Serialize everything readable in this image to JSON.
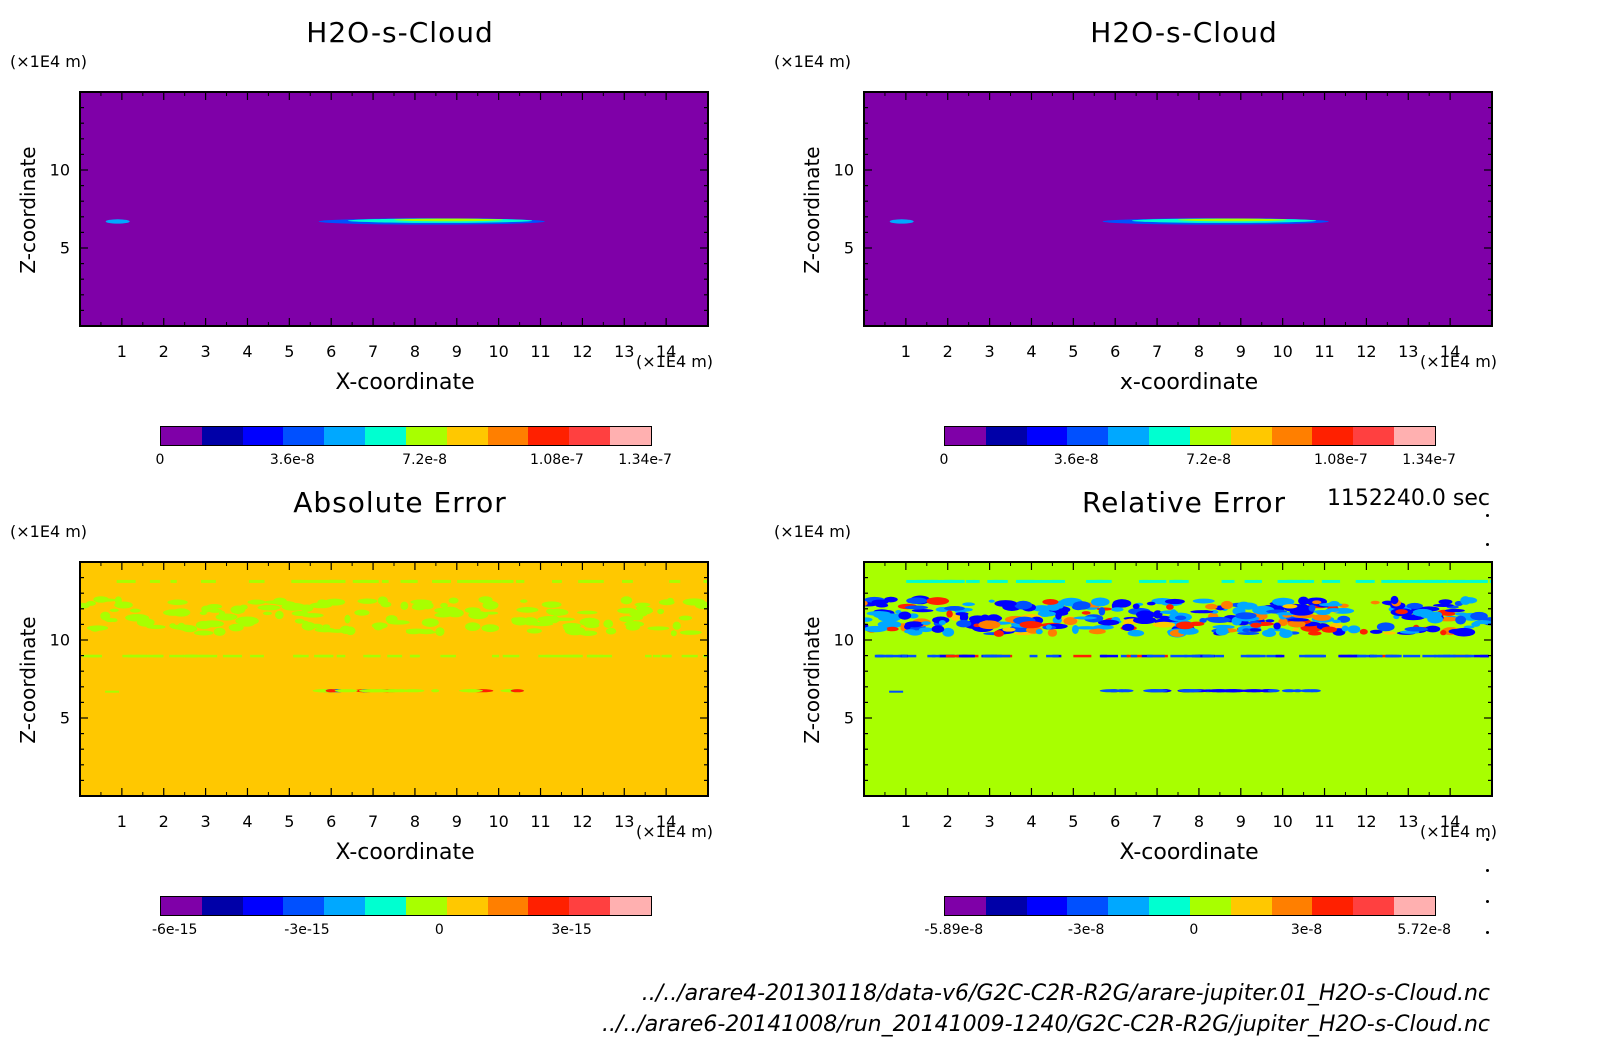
{
  "panels": [
    {
      "title": "H2O-s-Cloud",
      "z_unit": "(×1E4 m)",
      "x_unit": "(×1E4 m)",
      "ylabel": "Z-coordinate",
      "xlabel": "X-coordinate",
      "x_ticks": [
        "1",
        "2",
        "3",
        "4",
        "5",
        "6",
        "7",
        "8",
        "9",
        "10",
        "11",
        "12",
        "13",
        "14"
      ],
      "y_ticks": [
        "5",
        "10"
      ],
      "colorbar_labels": [
        "0",
        "3.6e-8",
        "7.2e-8",
        "1.08e-7",
        "1.34e-7"
      ],
      "background_color": "#7f00a8"
    },
    {
      "title": "H2O-s-Cloud",
      "z_unit": "(×1E4 m)",
      "x_unit": "(×1E4 m)",
      "ylabel": "Z-coordinate",
      "xlabel": "x-coordinate",
      "x_ticks": [
        "1",
        "2",
        "3",
        "4",
        "5",
        "6",
        "7",
        "8",
        "9",
        "10",
        "11",
        "12",
        "13",
        "14"
      ],
      "y_ticks": [
        "5",
        "10"
      ],
      "colorbar_labels": [
        "0",
        "3.6e-8",
        "7.2e-8",
        "1.08e-7",
        "1.34e-7"
      ],
      "background_color": "#7f00a8"
    },
    {
      "title": "Absolute Error",
      "z_unit": "(×1E4 m)",
      "x_unit": "(×1E4 m)",
      "ylabel": "Z-coordinate",
      "xlabel": "X-coordinate",
      "x_ticks": [
        "1",
        "2",
        "3",
        "4",
        "5",
        "6",
        "7",
        "8",
        "9",
        "10",
        "11",
        "12",
        "13",
        "14"
      ],
      "y_ticks": [
        "5",
        "10"
      ],
      "colorbar_labels": [
        "-6e-15",
        "-3e-15",
        "0",
        "3e-15"
      ],
      "background_color": "#ffc800"
    },
    {
      "title": "Relative Error",
      "z_unit": "(×1E4 m)",
      "x_unit": "(×1E4 m)",
      "ylabel": "Z-coordinate",
      "xlabel": "X-coordinate",
      "x_ticks": [
        "1",
        "2",
        "3",
        "4",
        "5",
        "6",
        "7",
        "8",
        "9",
        "10",
        "11",
        "12",
        "13",
        "14"
      ],
      "y_ticks": [
        "5",
        "10"
      ],
      "colorbar_labels": [
        "-5.89e-8",
        "-3e-8",
        "0",
        "3e-8",
        "5.72e-8"
      ],
      "background_color": "#a8ff00"
    }
  ],
  "time_label": "1152240.0 sec",
  "file_paths": [
    "../../arare4-20130118/data-v6/G2C-C2R-R2G/arare-jupiter.01_H2O-s-Cloud.nc",
    "../../arare6-20141008/run_20141009-1240/G2C-C2R-R2G/jupiter_H2O-s-Cloud.nc"
  ],
  "colormap": [
    "#7f00a8",
    "#0000a8",
    "#0000ff",
    "#0050ff",
    "#00a8ff",
    "#00ffd0",
    "#a8ff00",
    "#ffc800",
    "#ff7f00",
    "#ff2000",
    "#ff4040",
    "#ffb0b0"
  ],
  "chart_data": [
    {
      "type": "heatmap",
      "title": "H2O-s-Cloud",
      "xlabel": "X-coordinate",
      "ylabel": "Z-coordinate",
      "xlim": [
        0,
        15
      ],
      "ylim": [
        0,
        15
      ],
      "colorbar_range": [
        0,
        1.34e-07
      ],
      "features": [
        {
          "z": 6.7,
          "x_range": [
            0.6,
            1.2
          ],
          "value": "low"
        },
        {
          "z": 6.7,
          "x_range": [
            5.7,
            11.1
          ],
          "value": "up to 1.34e-7"
        }
      ]
    },
    {
      "type": "heatmap",
      "title": "H2O-s-Cloud",
      "xlabel": "x-coordinate",
      "ylabel": "Z-coordinate",
      "xlim": [
        0,
        15
      ],
      "ylim": [
        0,
        15
      ],
      "colorbar_range": [
        0,
        1.34e-07
      ],
      "features": [
        {
          "z": 6.7,
          "x_range": [
            0.6,
            1.2
          ],
          "value": "low"
        },
        {
          "z": 6.7,
          "x_range": [
            5.7,
            11.1
          ],
          "value": "up to 1.34e-7"
        }
      ]
    },
    {
      "type": "heatmap",
      "title": "Absolute Error",
      "xlabel": "X-coordinate",
      "ylabel": "Z-coordinate",
      "xlim": [
        0,
        15
      ],
      "ylim": [
        0,
        15
      ],
      "colorbar_range": [
        -6e-15,
        6e-15
      ],
      "features": [
        {
          "z_range": [
            10.5,
            12.5
          ],
          "value": "small negative"
        },
        {
          "z": 9.0,
          "value": "small negative"
        },
        {
          "z": 6.7,
          "x_range": [
            5.7,
            11.1
          ],
          "value": "mixed"
        }
      ]
    },
    {
      "type": "heatmap",
      "title": "Relative Error",
      "xlabel": "X-coordinate",
      "ylabel": "Z-coordinate",
      "xlim": [
        0,
        15
      ],
      "ylim": [
        0,
        15
      ],
      "colorbar_range": [
        -5.89e-08,
        5.72e-08
      ],
      "features": [
        {
          "z_range": [
            10.5,
            12.5
          ],
          "value": "mixed"
        },
        {
          "z": 9.0,
          "value": "mixed"
        },
        {
          "z": 6.7,
          "x_range": [
            5.7,
            11.1
          ],
          "value": "negative"
        }
      ]
    }
  ]
}
